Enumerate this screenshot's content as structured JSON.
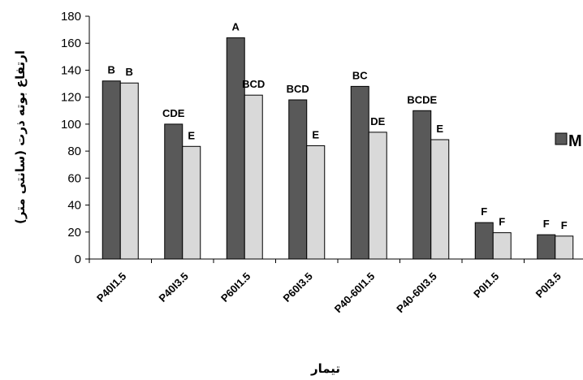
{
  "chart_data": {
    "type": "bar",
    "title": "",
    "xlabel": "تیمار",
    "ylabel": "ارتفاع بوته ذرت (سانتی متر)",
    "ylim": [
      0,
      180
    ],
    "yticks": [
      0,
      20,
      40,
      60,
      80,
      100,
      120,
      140,
      160,
      180
    ],
    "categories": [
      "P40I1.5",
      "P40I3.5",
      "P60I1.5",
      "P60I3.5",
      "P40-60I1.5",
      "P40-60I3.5",
      "P0I1.5",
      "P0I3.5"
    ],
    "series": [
      {
        "color": "#595959",
        "values": [
          132,
          100,
          164,
          118,
          128,
          110,
          27,
          18
        ],
        "labels": [
          "B",
          "CDE",
          "A",
          "BCD",
          "BC",
          "BCDE",
          "F",
          "F"
        ]
      },
      {
        "color": "#d9d9d9",
        "values": [
          130.5,
          83.5,
          121.5,
          84,
          94,
          88.5,
          19.5,
          17
        ],
        "labels": [
          "B",
          "E",
          "BCD",
          "E",
          "DE",
          "E",
          "F",
          "F"
        ]
      }
    ],
    "legend": {
      "position": "right",
      "entries": [
        "M"
      ]
    },
    "grid": false
  }
}
